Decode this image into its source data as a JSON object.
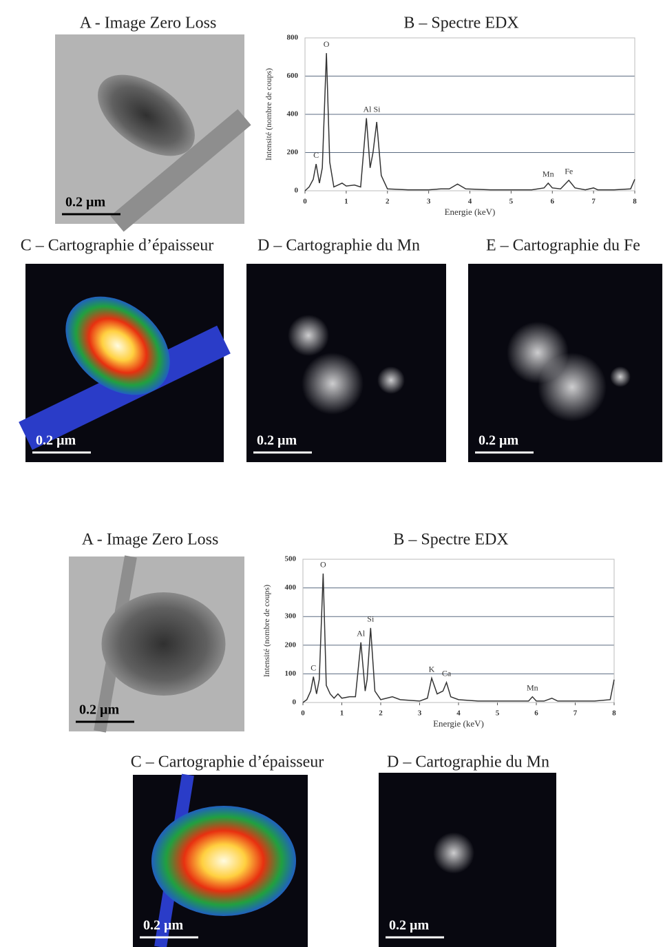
{
  "chart_data": [
    {
      "type": "line",
      "title": "B – Spectre EDX",
      "x_label": "Energie (keV)",
      "y_label": "Intensité (nombre de coups)",
      "color": "#333333",
      "grid": true,
      "x": [
        0,
        0.1,
        0.2,
        0.27,
        0.35,
        0.42,
        0.52,
        0.6,
        0.7,
        0.8,
        0.9,
        1.0,
        1.2,
        1.35,
        1.49,
        1.58,
        1.65,
        1.74,
        1.85,
        2.0,
        2.5,
        3.0,
        3.3,
        3.5,
        3.7,
        3.9,
        4.5,
        5.0,
        5.5,
        5.8,
        5.9,
        6.0,
        6.2,
        6.4,
        6.55,
        6.8,
        7.0,
        7.1,
        7.5,
        7.9,
        8.0
      ],
      "values": [
        0,
        20,
        60,
        140,
        40,
        120,
        720,
        150,
        20,
        30,
        40,
        25,
        30,
        20,
        380,
        120,
        200,
        360,
        80,
        10,
        5,
        5,
        10,
        10,
        35,
        10,
        5,
        5,
        5,
        15,
        40,
        15,
        10,
        55,
        15,
        5,
        15,
        5,
        5,
        10,
        60
      ],
      "xlim": [
        0,
        8
      ],
      "xticks": [
        0,
        1,
        2,
        3,
        4,
        5,
        6,
        7,
        8
      ],
      "ylim": [
        0,
        800
      ],
      "yticks": [
        0,
        200,
        400,
        600,
        800
      ],
      "annotations": [
        {
          "label": "C",
          "x": 0.27,
          "y": 140
        },
        {
          "label": "O",
          "x": 0.52,
          "y": 720
        },
        {
          "label": "Al Si",
          "x": 1.62,
          "y": 380
        },
        {
          "label": "Mn",
          "x": 5.9,
          "y": 40
        },
        {
          "label": "Fe",
          "x": 6.4,
          "y": 55
        }
      ]
    },
    {
      "type": "line",
      "title": "B – Spectre EDX",
      "x_label": "Energie (keV)",
      "y_label": "Intensité (nombre de coups)",
      "color": "#333333",
      "grid": true,
      "x": [
        0,
        0.1,
        0.2,
        0.27,
        0.35,
        0.42,
        0.52,
        0.6,
        0.7,
        0.8,
        0.9,
        1.0,
        1.2,
        1.35,
        1.49,
        1.6,
        1.65,
        1.74,
        1.85,
        2.0,
        2.3,
        2.5,
        3.0,
        3.2,
        3.31,
        3.45,
        3.6,
        3.69,
        3.8,
        4.0,
        4.5,
        5.0,
        5.5,
        5.8,
        5.9,
        6.0,
        6.2,
        6.4,
        6.55,
        7.0,
        7.5,
        7.9,
        8.0
      ],
      "values": [
        0,
        10,
        40,
        90,
        30,
        80,
        450,
        60,
        30,
        15,
        30,
        15,
        20,
        20,
        210,
        40,
        80,
        260,
        40,
        10,
        20,
        10,
        5,
        15,
        85,
        30,
        40,
        70,
        20,
        10,
        5,
        5,
        5,
        5,
        20,
        5,
        5,
        15,
        5,
        5,
        5,
        10,
        80
      ],
      "xlim": [
        0,
        8
      ],
      "xticks": [
        0,
        1,
        2,
        3,
        4,
        5,
        6,
        7,
        8
      ],
      "ylim": [
        0,
        500
      ],
      "yticks": [
        0,
        100,
        200,
        300,
        400,
        500
      ],
      "annotations": [
        {
          "label": "C",
          "x": 0.27,
          "y": 90
        },
        {
          "label": "O",
          "x": 0.52,
          "y": 450
        },
        {
          "label": "Al",
          "x": 1.49,
          "y": 210
        },
        {
          "label": "Si",
          "x": 1.74,
          "y": 260
        },
        {
          "label": "K",
          "x": 3.31,
          "y": 85
        },
        {
          "label": "Ca",
          "x": 3.69,
          "y": 70
        },
        {
          "label": "Mn",
          "x": 5.9,
          "y": 20
        }
      ]
    }
  ],
  "figures": [
    {
      "panels": [
        {
          "title": "A - Image Zero Loss",
          "scale_bar": "0.2 µm"
        },
        {
          "title": "C – Cartographie d’épaisseur",
          "scale_bar": "0.2 µm"
        },
        {
          "title": "D – Cartographie du Mn",
          "scale_bar": "0.2 µm"
        },
        {
          "title": "E – Cartographie du Fe",
          "scale_bar": "0.2 µm"
        }
      ]
    },
    {
      "panels": [
        {
          "title": "A - Image Zero Loss",
          "scale_bar": "0.2 µm"
        },
        {
          "title": "C – Cartographie d’épaisseur",
          "scale_bar": "0.2 µm"
        },
        {
          "title": "D – Cartographie du Mn",
          "scale_bar": "0.2 µm"
        }
      ]
    }
  ]
}
